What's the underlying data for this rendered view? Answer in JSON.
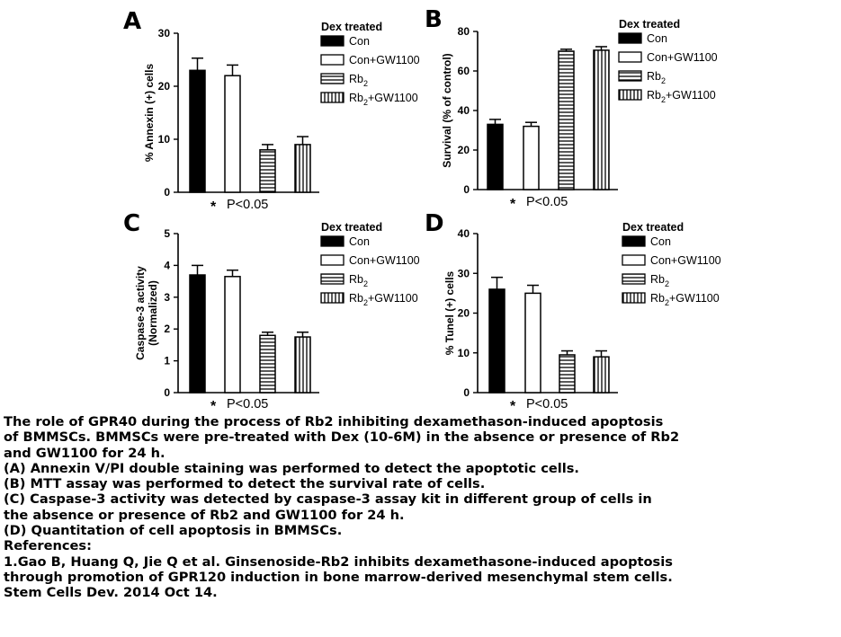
{
  "legend_title": "Dex treated",
  "significance_note": "P<0.05",
  "significance_star": "*",
  "colors": {
    "bar_fill": "#000000",
    "background": "#ffffff"
  },
  "legend_items": [
    {
      "text": "Con",
      "sub": "",
      "tail": "",
      "pattern": "solid"
    },
    {
      "text": "Con+GW1100",
      "sub": "",
      "tail": "",
      "pattern": "open"
    },
    {
      "text": "Rb",
      "sub": "2",
      "tail": "",
      "pattern": "hlines"
    },
    {
      "text": "Rb",
      "sub": "2",
      "tail": "+GW1100",
      "pattern": "vlines"
    }
  ],
  "chart_data": [
    {
      "panel": "A",
      "type": "bar",
      "categories": [
        "Con",
        "Con+GW1100",
        "Rb2",
        "Rb2+GW1100"
      ],
      "values": [
        23,
        22,
        8,
        9
      ],
      "errors": [
        2.3,
        2.0,
        1.0,
        1.5
      ],
      "ylabel": "% Annexin (+) cells",
      "ylabel2": "",
      "ylim": [
        0,
        30
      ],
      "yticks": [
        "0",
        "10",
        "20",
        "30"
      ]
    },
    {
      "panel": "B",
      "type": "bar",
      "categories": [
        "Con",
        "Con+GW1100",
        "Rb2",
        "Rb2+GW1100"
      ],
      "values": [
        33,
        32,
        70,
        70.5
      ],
      "errors": [
        2.5,
        2.0,
        1.0,
        1.8
      ],
      "ylabel": "Survival (% of control)",
      "ylabel2": "",
      "ylim": [
        0,
        80
      ],
      "yticks": [
        "0",
        "20",
        "40",
        "60",
        "80"
      ]
    },
    {
      "panel": "C",
      "type": "bar",
      "categories": [
        "Con",
        "Con+GW1100",
        "Rb2",
        "Rb2+GW1100"
      ],
      "values": [
        3.7,
        3.65,
        1.8,
        1.75
      ],
      "errors": [
        0.3,
        0.2,
        0.1,
        0.15
      ],
      "ylabel": "Caspase-3 activity",
      "ylabel2": "(Normalized)",
      "ylim": [
        0,
        5
      ],
      "yticks": [
        "0",
        "1",
        "2",
        "3",
        "4",
        "5"
      ]
    },
    {
      "panel": "D",
      "type": "bar",
      "categories": [
        "Con",
        "Con+GW1100",
        "Rb2",
        "Rb2+GW1100"
      ],
      "values": [
        26,
        25,
        9.5,
        9
      ],
      "errors": [
        3,
        2,
        1,
        1.5
      ],
      "ylabel": "% Tunel (+) cells",
      "ylabel2": "",
      "ylim": [
        0,
        40
      ],
      "yticks": [
        "0",
        "10",
        "20",
        "30",
        "40"
      ]
    }
  ],
  "caption": [
    "The role of GPR40 during the process of Rb2 inhibiting dexamethason-induced apoptosis",
    "of BMMSCs. BMMSCs were pre-treated with Dex (10-6M) in the absence or presence of Rb2",
    "and GW1100 for 24 h.",
    "(A) Annexin V/PI double staining was performed to detect the apoptotic cells.",
    "(B) MTT assay was performed to detect the survival rate of cells.",
    "(C) Caspase-3 activity was detected by caspase-3 assay kit in different group of cells in",
    "the absence or presence of Rb2 and GW1100 for 24 h.",
    "(D) Quantitation of cell apoptosis in BMMSCs.",
    "References:",
    "1.Gao B, Huang Q, Jie Q et al. Ginsenoside-Rb2 inhibits dexamethasone-induced apoptosis",
    "through promotion of GPR120 induction in bone marrow-derived mesenchymal stem cells.",
    "Stem Cells Dev. 2014 Oct 14."
  ]
}
